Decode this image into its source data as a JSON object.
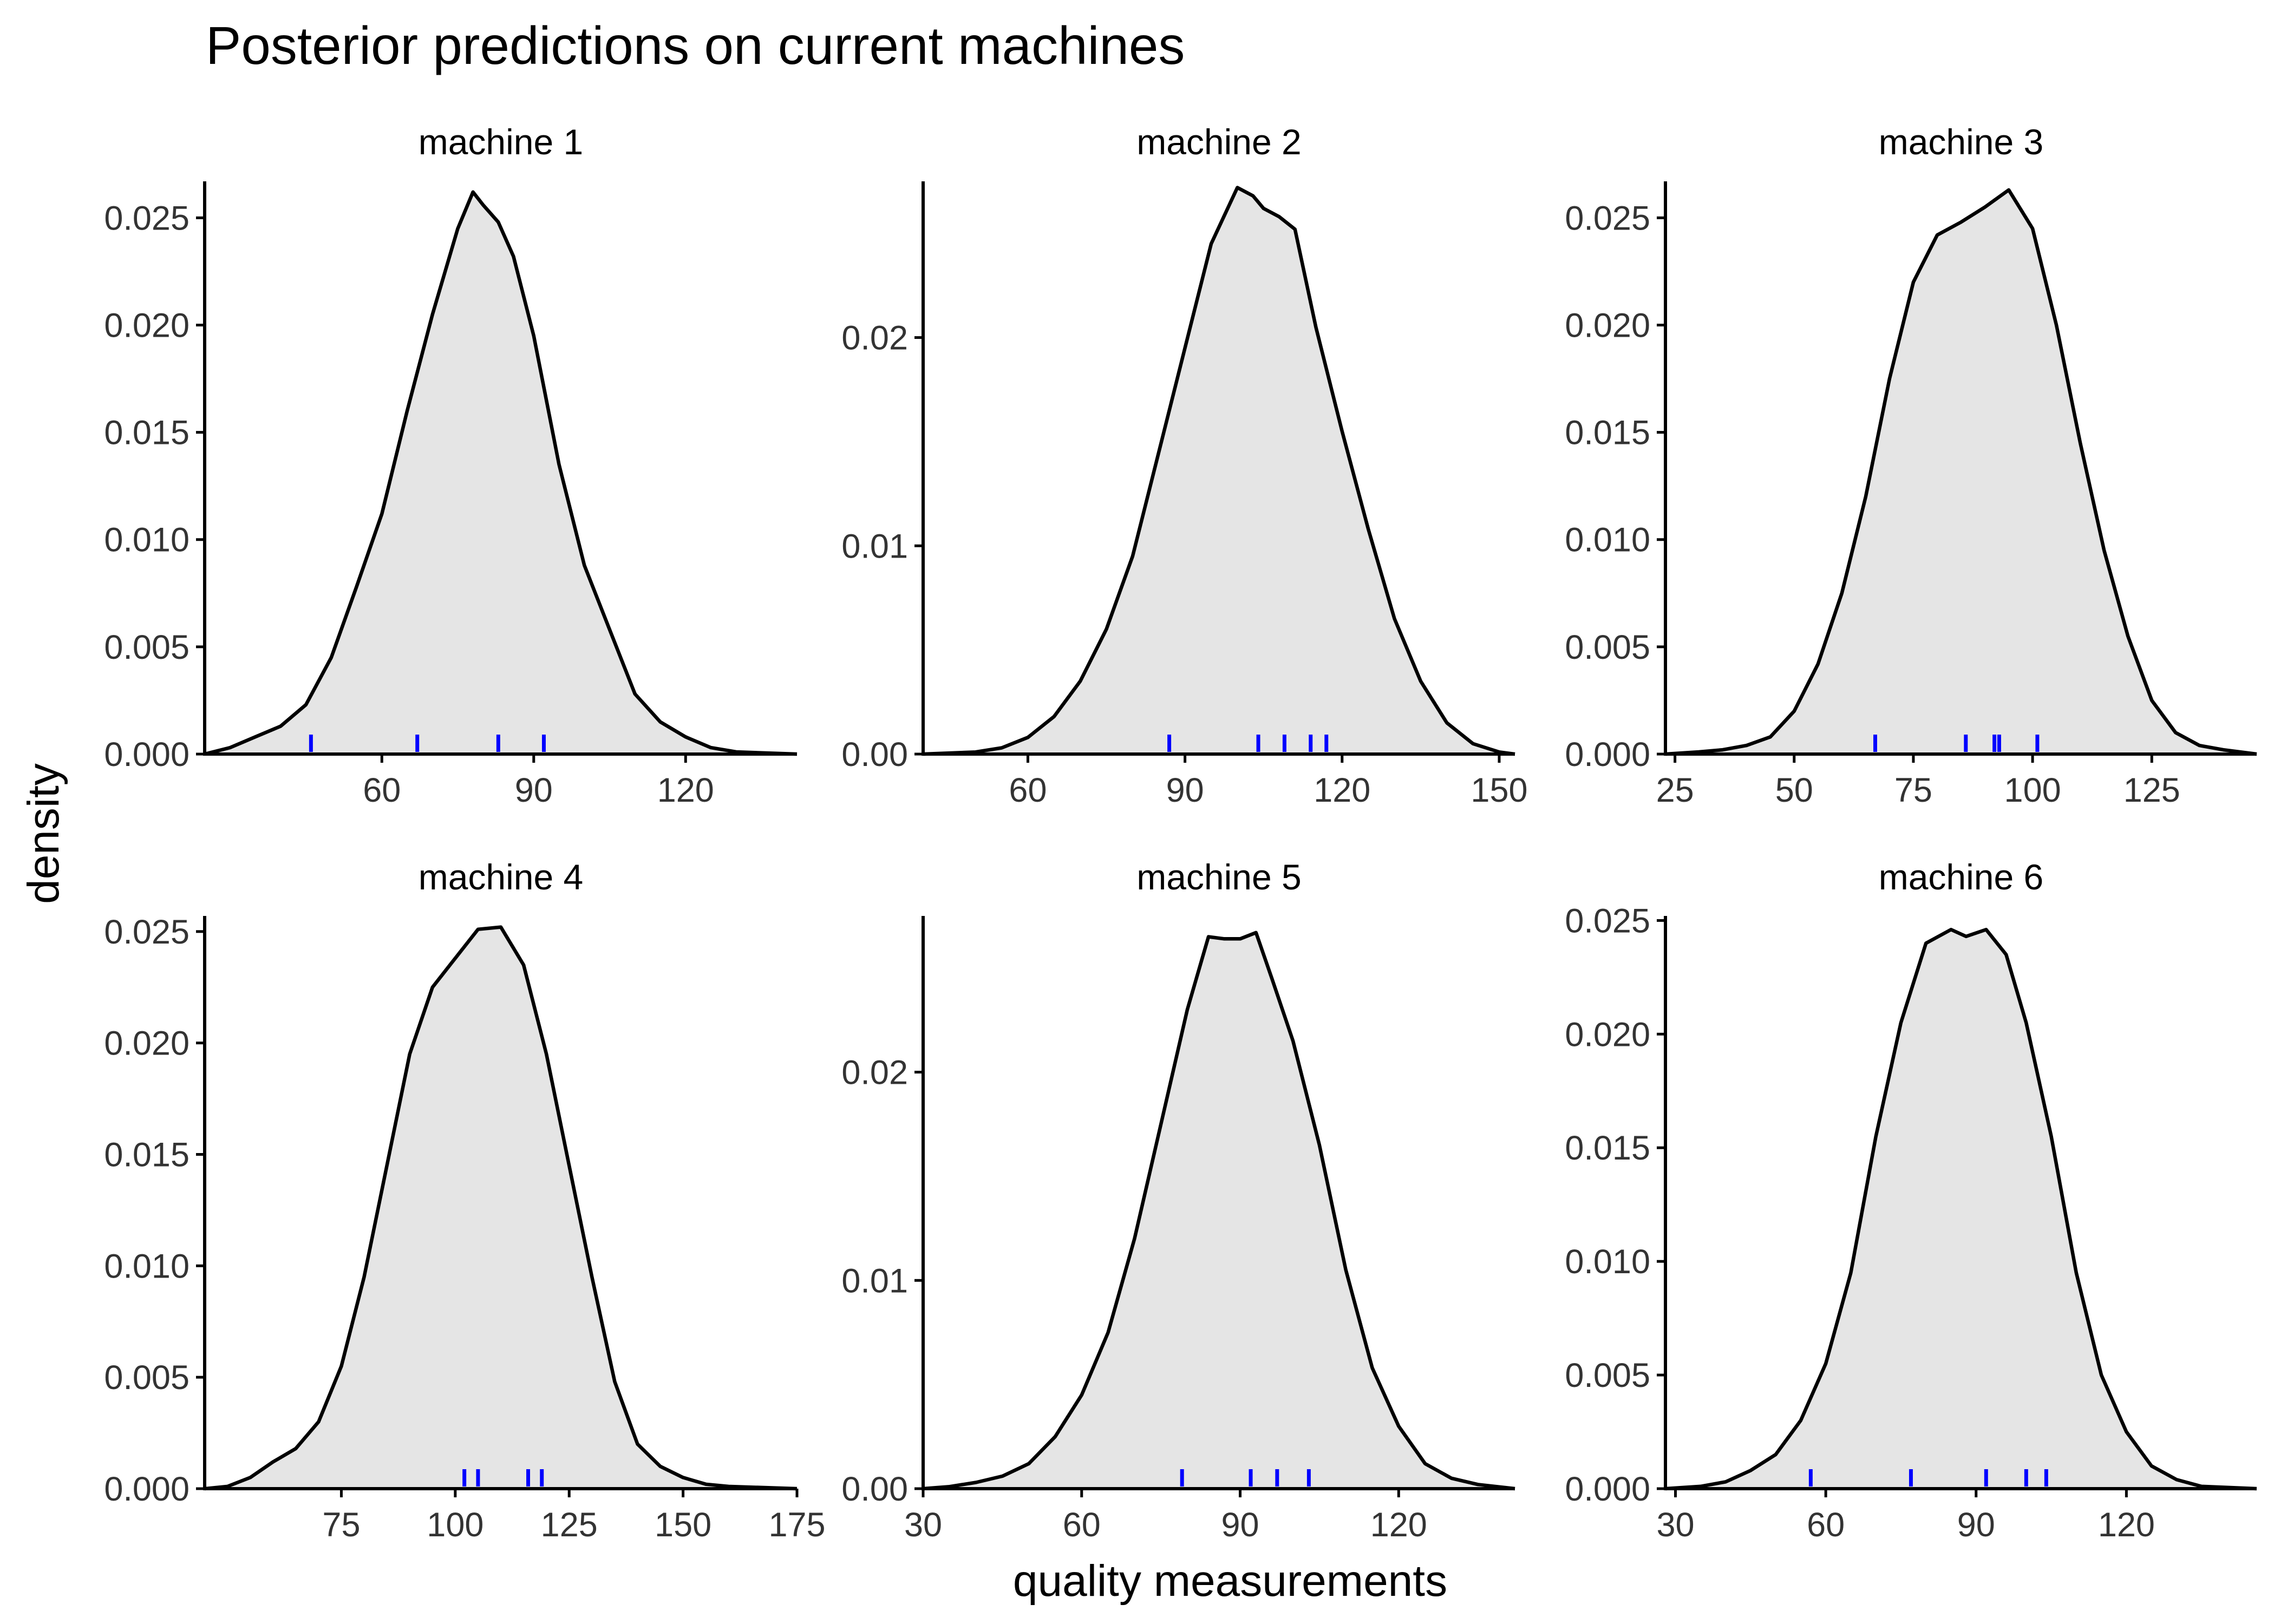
{
  "chart_data": {
    "type": "area",
    "title": "Posterior predictions on current machines",
    "xlabel": "quality measurements",
    "ylabel": "density",
    "grid": false,
    "legend": "none",
    "colors": {
      "fill": "#e5e5e5",
      "line": "#000000",
      "rug": "#0000ff"
    },
    "panels": [
      {
        "name": "machine 1",
        "xlim": [
          25,
          142
        ],
        "ylim": [
          0,
          0.0267
        ],
        "xticks": [
          60,
          90,
          120
        ],
        "xtick_labels": [
          "60",
          "90",
          "120"
        ],
        "yticks": [
          0,
          0.005,
          0.01,
          0.015,
          0.02,
          0.025
        ],
        "ytick_labels": [
          "0.000",
          "0.005",
          "0.010",
          "0.015",
          "0.020",
          "0.025"
        ],
        "density": [
          [
            25,
            0
          ],
          [
            30,
            0.0003
          ],
          [
            35,
            0.0008
          ],
          [
            40,
            0.0013
          ],
          [
            45,
            0.0023
          ],
          [
            50,
            0.0045
          ],
          [
            55,
            0.0078
          ],
          [
            60,
            0.0112
          ],
          [
            65,
            0.016
          ],
          [
            70,
            0.0205
          ],
          [
            75,
            0.0245
          ],
          [
            78,
            0.0262
          ],
          [
            80,
            0.0256
          ],
          [
            83,
            0.0248
          ],
          [
            86,
            0.0232
          ],
          [
            90,
            0.0195
          ],
          [
            95,
            0.0135
          ],
          [
            100,
            0.0088
          ],
          [
            105,
            0.0058
          ],
          [
            110,
            0.0028
          ],
          [
            115,
            0.0015
          ],
          [
            120,
            0.0008
          ],
          [
            125,
            0.0003
          ],
          [
            130,
            0.0001
          ],
          [
            142,
            0
          ]
        ],
        "observed": [
          46,
          67,
          83,
          92
        ]
      },
      {
        "name": "machine 2",
        "xlim": [
          40,
          153
        ],
        "ylim": [
          0,
          0.0275
        ],
        "xticks": [
          60,
          90,
          120,
          150
        ],
        "xtick_labels": [
          "60",
          "90",
          "120",
          "150"
        ],
        "yticks": [
          0,
          0.01,
          0.02
        ],
        "ytick_labels": [
          "0.00",
          "0.01",
          "0.02"
        ],
        "density": [
          [
            40,
            0
          ],
          [
            45,
            5e-05
          ],
          [
            50,
            0.0001
          ],
          [
            55,
            0.0003
          ],
          [
            60,
            0.0008
          ],
          [
            65,
            0.0018
          ],
          [
            70,
            0.0035
          ],
          [
            75,
            0.006
          ],
          [
            80,
            0.0095
          ],
          [
            85,
            0.0145
          ],
          [
            90,
            0.0195
          ],
          [
            95,
            0.0245
          ],
          [
            100,
            0.0272
          ],
          [
            103,
            0.0268
          ],
          [
            105,
            0.0262
          ],
          [
            108,
            0.0258
          ],
          [
            111,
            0.0252
          ],
          [
            115,
            0.0205
          ],
          [
            120,
            0.0155
          ],
          [
            125,
            0.0108
          ],
          [
            130,
            0.0065
          ],
          [
            135,
            0.0035
          ],
          [
            140,
            0.0015
          ],
          [
            145,
            0.0005
          ],
          [
            150,
            0.0001
          ],
          [
            153,
            0
          ]
        ],
        "observed": [
          87,
          104,
          109,
          114,
          117
        ]
      },
      {
        "name": "machine 3",
        "xlim": [
          23,
          147
        ],
        "ylim": [
          0,
          0.0267
        ],
        "xticks": [
          25,
          50,
          75,
          100,
          125
        ],
        "xtick_labels": [
          "25",
          "50",
          "75",
          "100",
          "125"
        ],
        "yticks": [
          0,
          0.005,
          0.01,
          0.015,
          0.02,
          0.025
        ],
        "ytick_labels": [
          "0.000",
          "0.005",
          "0.010",
          "0.015",
          "0.020",
          "0.025"
        ],
        "density": [
          [
            23,
            0
          ],
          [
            30,
            0.0001
          ],
          [
            35,
            0.0002
          ],
          [
            40,
            0.0004
          ],
          [
            45,
            0.0008
          ],
          [
            50,
            0.002
          ],
          [
            55,
            0.0042
          ],
          [
            60,
            0.0075
          ],
          [
            65,
            0.012
          ],
          [
            70,
            0.0175
          ],
          [
            75,
            0.022
          ],
          [
            80,
            0.0242
          ],
          [
            85,
            0.0248
          ],
          [
            90,
            0.0255
          ],
          [
            95,
            0.0263
          ],
          [
            100,
            0.0245
          ],
          [
            105,
            0.02
          ],
          [
            110,
            0.0145
          ],
          [
            115,
            0.0095
          ],
          [
            120,
            0.0055
          ],
          [
            125,
            0.0025
          ],
          [
            130,
            0.001
          ],
          [
            135,
            0.0004
          ],
          [
            140,
            0.0002
          ],
          [
            147,
            0
          ]
        ],
        "observed": [
          67,
          86,
          92,
          93,
          101
        ]
      },
      {
        "name": "machine 4",
        "xlim": [
          45,
          175
        ],
        "ylim": [
          0,
          0.0257
        ],
        "xticks": [
          75,
          100,
          125,
          150,
          175
        ],
        "xtick_labels": [
          "75",
          "100",
          "125",
          "150",
          "175"
        ],
        "yticks": [
          0,
          0.005,
          0.01,
          0.015,
          0.02,
          0.025
        ],
        "ytick_labels": [
          "0.000",
          "0.005",
          "0.010",
          "0.015",
          "0.020",
          "0.025"
        ],
        "density": [
          [
            45,
            0
          ],
          [
            50,
            0.0001
          ],
          [
            55,
            0.0005
          ],
          [
            60,
            0.0012
          ],
          [
            65,
            0.0018
          ],
          [
            70,
            0.003
          ],
          [
            75,
            0.0055
          ],
          [
            80,
            0.0095
          ],
          [
            85,
            0.0145
          ],
          [
            90,
            0.0195
          ],
          [
            95,
            0.0225
          ],
          [
            100,
            0.0238
          ],
          [
            105,
            0.0251
          ],
          [
            110,
            0.0252
          ],
          [
            115,
            0.0235
          ],
          [
            120,
            0.0195
          ],
          [
            125,
            0.0145
          ],
          [
            130,
            0.0095
          ],
          [
            135,
            0.0048
          ],
          [
            140,
            0.002
          ],
          [
            145,
            0.001
          ],
          [
            150,
            0.0005
          ],
          [
            155,
            0.0002
          ],
          [
            160,
            0.0001
          ],
          [
            175,
            0
          ]
        ],
        "observed": [
          102,
          105,
          116,
          119
        ]
      },
      {
        "name": "machine 5",
        "xlim": [
          30,
          142
        ],
        "ylim": [
          0,
          0.0275
        ],
        "xticks": [
          30,
          60,
          90,
          120
        ],
        "xtick_labels": [
          "30",
          "60",
          "90",
          "120"
        ],
        "yticks": [
          0,
          0.01,
          0.02
        ],
        "ytick_labels": [
          "0.00",
          "0.01",
          "0.02"
        ],
        "density": [
          [
            30,
            0
          ],
          [
            35,
            0.0001
          ],
          [
            40,
            0.0003
          ],
          [
            45,
            0.0006
          ],
          [
            50,
            0.0012
          ],
          [
            55,
            0.0025
          ],
          [
            60,
            0.0045
          ],
          [
            65,
            0.0075
          ],
          [
            70,
            0.012
          ],
          [
            75,
            0.0175
          ],
          [
            80,
            0.023
          ],
          [
            84,
            0.0265
          ],
          [
            87,
            0.0264
          ],
          [
            90,
            0.0264
          ],
          [
            93,
            0.0267
          ],
          [
            96,
            0.0245
          ],
          [
            100,
            0.0215
          ],
          [
            105,
            0.0165
          ],
          [
            110,
            0.0105
          ],
          [
            115,
            0.0058
          ],
          [
            120,
            0.003
          ],
          [
            125,
            0.0012
          ],
          [
            130,
            0.0005
          ],
          [
            135,
            0.0002
          ],
          [
            142,
            0
          ]
        ],
        "observed": [
          79,
          92,
          97,
          103
        ]
      },
      {
        "name": "machine 6",
        "xlim": [
          28,
          146
        ],
        "ylim": [
          0,
          0.0252
        ],
        "xticks": [
          30,
          60,
          90,
          120
        ],
        "xtick_labels": [
          "30",
          "60",
          "90",
          "120"
        ],
        "yticks": [
          0,
          0.005,
          0.01,
          0.015,
          0.02,
          0.025
        ],
        "ytick_labels": [
          "0.000",
          "0.005",
          "0.010",
          "0.015",
          "0.020",
          "0.025"
        ],
        "density": [
          [
            28,
            0
          ],
          [
            35,
            0.0001
          ],
          [
            40,
            0.0003
          ],
          [
            45,
            0.0008
          ],
          [
            50,
            0.0015
          ],
          [
            55,
            0.003
          ],
          [
            60,
            0.0055
          ],
          [
            65,
            0.0095
          ],
          [
            70,
            0.0155
          ],
          [
            75,
            0.0205
          ],
          [
            80,
            0.024
          ],
          [
            85,
            0.0246
          ],
          [
            88,
            0.0243
          ],
          [
            92,
            0.0246
          ],
          [
            96,
            0.0235
          ],
          [
            100,
            0.0205
          ],
          [
            105,
            0.0155
          ],
          [
            110,
            0.0095
          ],
          [
            115,
            0.005
          ],
          [
            120,
            0.0025
          ],
          [
            125,
            0.001
          ],
          [
            130,
            0.0004
          ],
          [
            135,
            0.0001
          ],
          [
            146,
            0
          ]
        ],
        "observed": [
          57,
          77,
          92,
          100,
          104
        ]
      }
    ]
  }
}
